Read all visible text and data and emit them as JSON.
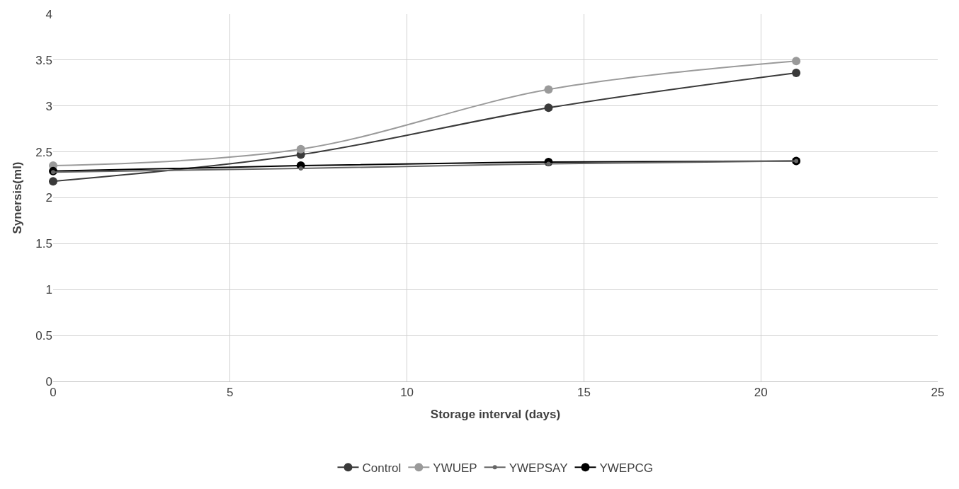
{
  "chart_data": {
    "type": "line",
    "xlabel": "Storage interval (days)",
    "ylabel": "Synersis(ml)",
    "x": [
      0,
      7,
      14,
      21
    ],
    "series": [
      {
        "name": "Control",
        "color": "#3a3a3a",
        "values": [
          2.18,
          2.47,
          2.98,
          3.36
        ]
      },
      {
        "name": "YWUEP",
        "color": "#9a9a9a",
        "values": [
          2.35,
          2.53,
          3.18,
          3.49
        ]
      },
      {
        "name": "YWEPSAY",
        "color": "#666666",
        "values": [
          2.28,
          2.32,
          2.37,
          2.4
        ]
      },
      {
        "name": "YWEPCG",
        "color": "#000000",
        "values": [
          2.29,
          2.35,
          2.39,
          2.4
        ]
      }
    ],
    "xlim": [
      0,
      25
    ],
    "xticks": [
      0,
      5,
      10,
      15,
      20,
      25
    ],
    "ylim": [
      0,
      4
    ],
    "yticks": [
      0,
      0.5,
      1,
      1.5,
      2,
      2.5,
      3,
      3.5,
      4
    ],
    "grid": true,
    "legend": "bottom",
    "marker": "circle",
    "line_style": "solid"
  }
}
